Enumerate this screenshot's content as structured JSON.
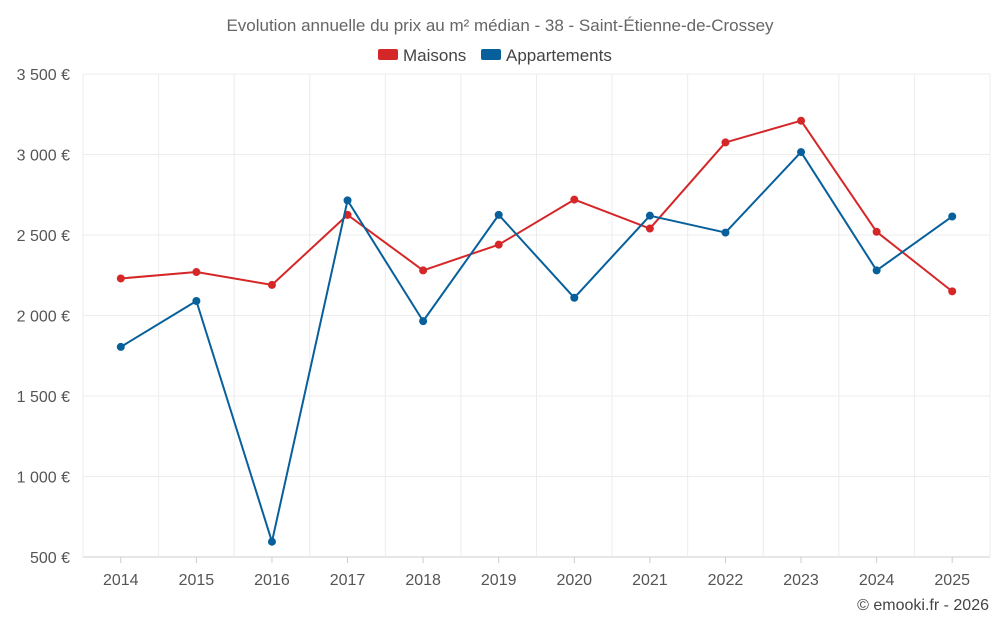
{
  "chart_data": {
    "type": "line",
    "title": "Evolution annuelle du prix au m² médian - 38 - Saint-Étienne-de-Crossey",
    "categories": [
      "2014",
      "2015",
      "2016",
      "2017",
      "2018",
      "2019",
      "2020",
      "2021",
      "2022",
      "2023",
      "2024",
      "2025"
    ],
    "series": [
      {
        "name": "Maisons",
        "color": "#d62728",
        "values": [
          2230,
          2270,
          2190,
          2625,
          2280,
          2440,
          2720,
          2540,
          3075,
          3210,
          2520,
          2150
        ]
      },
      {
        "name": "Appartements",
        "color": "#07609b",
        "values": [
          1805,
          2090,
          595,
          2715,
          1965,
          2625,
          2110,
          2620,
          2515,
          3015,
          2280,
          2615
        ]
      }
    ],
    "y_ticks": [
      500,
      1000,
      1500,
      2000,
      2500,
      3000,
      3500
    ],
    "y_tick_labels": [
      "500 €",
      "1 000 €",
      "1 500 €",
      "2 000 €",
      "2 500 €",
      "3 000 €",
      "3 500 €"
    ],
    "ylim": [
      500,
      3500
    ],
    "xlabel": "",
    "ylabel": "",
    "grid": true,
    "legend_position": "top-center"
  },
  "credit": "© emooki.fr - 2026"
}
